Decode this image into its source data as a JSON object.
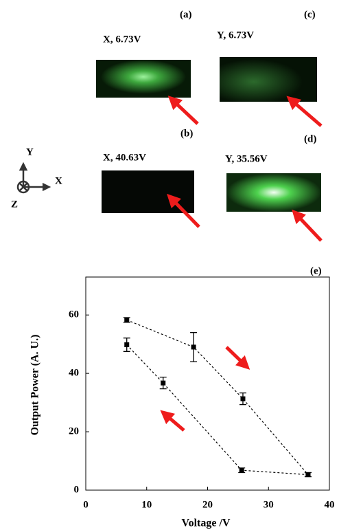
{
  "panels": [
    {
      "label": "(a)",
      "caption": "X, 6.73V"
    },
    {
      "label": "(b)",
      "caption": "X, 40.63V"
    },
    {
      "label": "(c)",
      "caption": "Y, 6.73V"
    },
    {
      "label": "(d)",
      "caption": "Y, 35.56V"
    }
  ],
  "axes_icon": {
    "x": "X",
    "y": "Y",
    "z": "Z"
  },
  "chart_data": {
    "type": "errorline",
    "panel_label": "(e)",
    "x_label": "Voltage /V",
    "y_label": "Output Power (A. U.)",
    "series": [
      {
        "color": "#000000",
        "x": [
          6.73,
          17.7,
          25.8,
          36.5
        ],
        "values": [
          58.3,
          49,
          31.3,
          5.3
        ],
        "errors": [
          0.8,
          5,
          2,
          0.7
        ]
      },
      {
        "color": "#000000",
        "x": [
          6.73,
          12.7,
          25.6,
          36.5
        ],
        "values": [
          49.8,
          36.7,
          6.8,
          5.3
        ],
        "errors": [
          2.3,
          2,
          0.8,
          0.7
        ]
      }
    ],
    "xlim": [
      0,
      40
    ],
    "xticks": [
      0,
      10,
      20,
      30,
      40
    ],
    "ylim": [
      0,
      73
    ],
    "yticks": [
      0,
      20,
      40,
      60
    ]
  }
}
